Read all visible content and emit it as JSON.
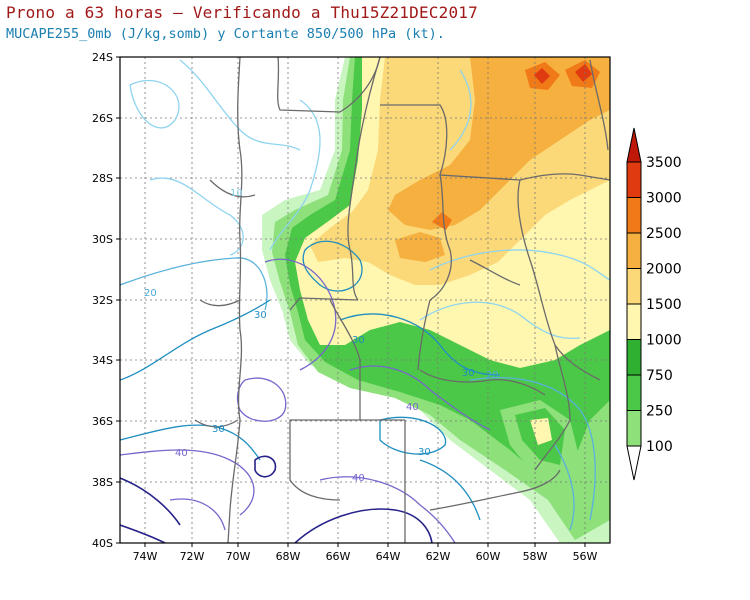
{
  "title": {
    "line1": "Prono a 63 horas — Verificando a Thu15Z21DEC2017",
    "line2": "MUCAPE255_0mb (J/kg,somb) y Cortante 850/500 hPa (kt)."
  },
  "map": {
    "lat_labels": [
      "24S",
      "26S",
      "28S",
      "30S",
      "32S",
      "34S",
      "36S",
      "38S",
      "40S"
    ],
    "lon_labels": [
      "74W",
      "72W",
      "70W",
      "68W",
      "66W",
      "64W",
      "62W",
      "60W",
      "58W",
      "56W"
    ],
    "contour_labels": [
      {
        "text": "10",
        "color": "#7fd0f0"
      },
      {
        "text": "20",
        "color": "#4aa8d8"
      },
      {
        "text": "30",
        "color": "#1f8fc0"
      },
      {
        "text": "30",
        "color": "#1f8fc0"
      },
      {
        "text": "30",
        "color": "#1f8fc0"
      },
      {
        "text": "30",
        "color": "#1f8fc0"
      },
      {
        "text": "30",
        "color": "#1f8fc0"
      },
      {
        "text": "20",
        "color": "#4aa8d8"
      },
      {
        "text": "40",
        "color": "#7766cc"
      },
      {
        "text": "40",
        "color": "#7766cc"
      },
      {
        "text": "40",
        "color": "#7766cc"
      }
    ]
  },
  "colorbar": {
    "labels": [
      "100",
      "250",
      "750",
      "1000",
      "1500",
      "2000",
      "2500",
      "3000",
      "3500"
    ],
    "colors": [
      "#c8f5c0",
      "#8ee07a",
      "#4cc848",
      "#30b030",
      "#fff6b0",
      "#fbd878",
      "#f6b040",
      "#f07a18",
      "#e03a10",
      "#c01808"
    ]
  }
}
